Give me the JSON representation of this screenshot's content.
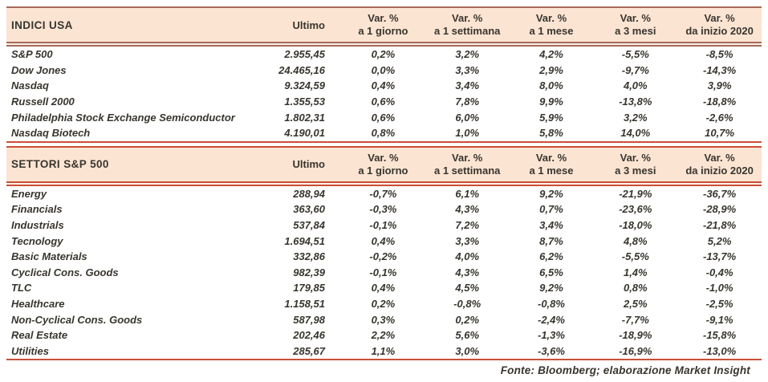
{
  "colors": {
    "band_bg": "#fce4d3",
    "muted_line": "#a5695a",
    "bright_line": "#ca4f38",
    "text": "#38352e",
    "page_bg": "#ffffff"
  },
  "columns": {
    "ultimo": "Ultimo",
    "var_cols": [
      {
        "line1": "Var. %",
        "line2": "a 1 giorno"
      },
      {
        "line1": "Var. %",
        "line2": "a 1 settimana"
      },
      {
        "line1": "Var. %",
        "line2": "a 1 mese"
      },
      {
        "line1": "Var. %",
        "line2": "a 3 mesi"
      },
      {
        "line1": "Var. %",
        "line2": "da inizio 2020"
      }
    ]
  },
  "tables": [
    {
      "title": "INDICI USA",
      "rows": [
        {
          "name": "S&P 500",
          "ultimo": "2.955,45",
          "vars": [
            "0,2%",
            "3,2%",
            "4,2%",
            "-5,5%",
            "-8,5%"
          ]
        },
        {
          "name": "Dow Jones",
          "ultimo": "24.465,16",
          "vars": [
            "0,0%",
            "3,3%",
            "2,9%",
            "-9,7%",
            "-14,3%"
          ]
        },
        {
          "name": "Nasdaq",
          "ultimo": "9.324,59",
          "vars": [
            "0,4%",
            "3,4%",
            "8,0%",
            "4,0%",
            "3,9%"
          ]
        },
        {
          "name": "Russell 2000",
          "ultimo": "1.355,53",
          "vars": [
            "0,6%",
            "7,8%",
            "9,9%",
            "-13,8%",
            "-18,8%"
          ]
        },
        {
          "name": "Philadelphia Stock Exchange Semiconductor",
          "ultimo": "1.802,31",
          "vars": [
            "0,6%",
            "6,0%",
            "5,9%",
            "3,2%",
            "-2,6%"
          ]
        },
        {
          "name": "Nasdaq Biotech",
          "ultimo": "4.190,01",
          "vars": [
            "0,8%",
            "1,0%",
            "5,8%",
            "14,0%",
            "10,7%"
          ]
        }
      ]
    },
    {
      "title": "SETTORI S&P 500",
      "rows": [
        {
          "name": "Energy",
          "ultimo": "288,94",
          "vars": [
            "-0,7%",
            "6,1%",
            "9,2%",
            "-21,9%",
            "-36,7%"
          ]
        },
        {
          "name": "Financials",
          "ultimo": "363,60",
          "vars": [
            "-0,3%",
            "4,3%",
            "0,7%",
            "-23,6%",
            "-28,9%"
          ]
        },
        {
          "name": "Industrials",
          "ultimo": "537,84",
          "vars": [
            "-0,1%",
            "7,2%",
            "3,4%",
            "-18,0%",
            "-21,8%"
          ]
        },
        {
          "name": "Tecnology",
          "ultimo": "1.694,51",
          "vars": [
            "0,4%",
            "3,3%",
            "8,7%",
            "4,8%",
            "5,2%"
          ]
        },
        {
          "name": "Basic Materials",
          "ultimo": "332,86",
          "vars": [
            "-0,2%",
            "4,0%",
            "6,2%",
            "-5,5%",
            "-13,7%"
          ]
        },
        {
          "name": "Cyclical Cons. Goods",
          "ultimo": "982,39",
          "vars": [
            "-0,1%",
            "4,3%",
            "6,5%",
            "1,4%",
            "-0,4%"
          ]
        },
        {
          "name": "TLC",
          "ultimo": "179,85",
          "vars": [
            "0,4%",
            "4,5%",
            "9,2%",
            "0,8%",
            "-1,0%"
          ]
        },
        {
          "name": "Healthcare",
          "ultimo": "1.158,51",
          "vars": [
            "0,2%",
            "-0,8%",
            "-0,8%",
            "2,5%",
            "-2,5%"
          ]
        },
        {
          "name": "Non-Cyclical Cons. Goods",
          "ultimo": "587,98",
          "vars": [
            "0,3%",
            "0,2%",
            "-2,4%",
            "-7,7%",
            "-9,1%"
          ]
        },
        {
          "name": "Real Estate",
          "ultimo": "202,46",
          "vars": [
            "2,2%",
            "5,6%",
            "-1,3%",
            "-18,9%",
            "-15,8%"
          ]
        },
        {
          "name": "Utilities",
          "ultimo": "285,67",
          "vars": [
            "1,1%",
            "3,0%",
            "-3,6%",
            "-16,9%",
            "-13,0%"
          ]
        }
      ]
    }
  ],
  "footer": {
    "text": "Fonte: Bloomberg; elaborazione Market Insight"
  }
}
